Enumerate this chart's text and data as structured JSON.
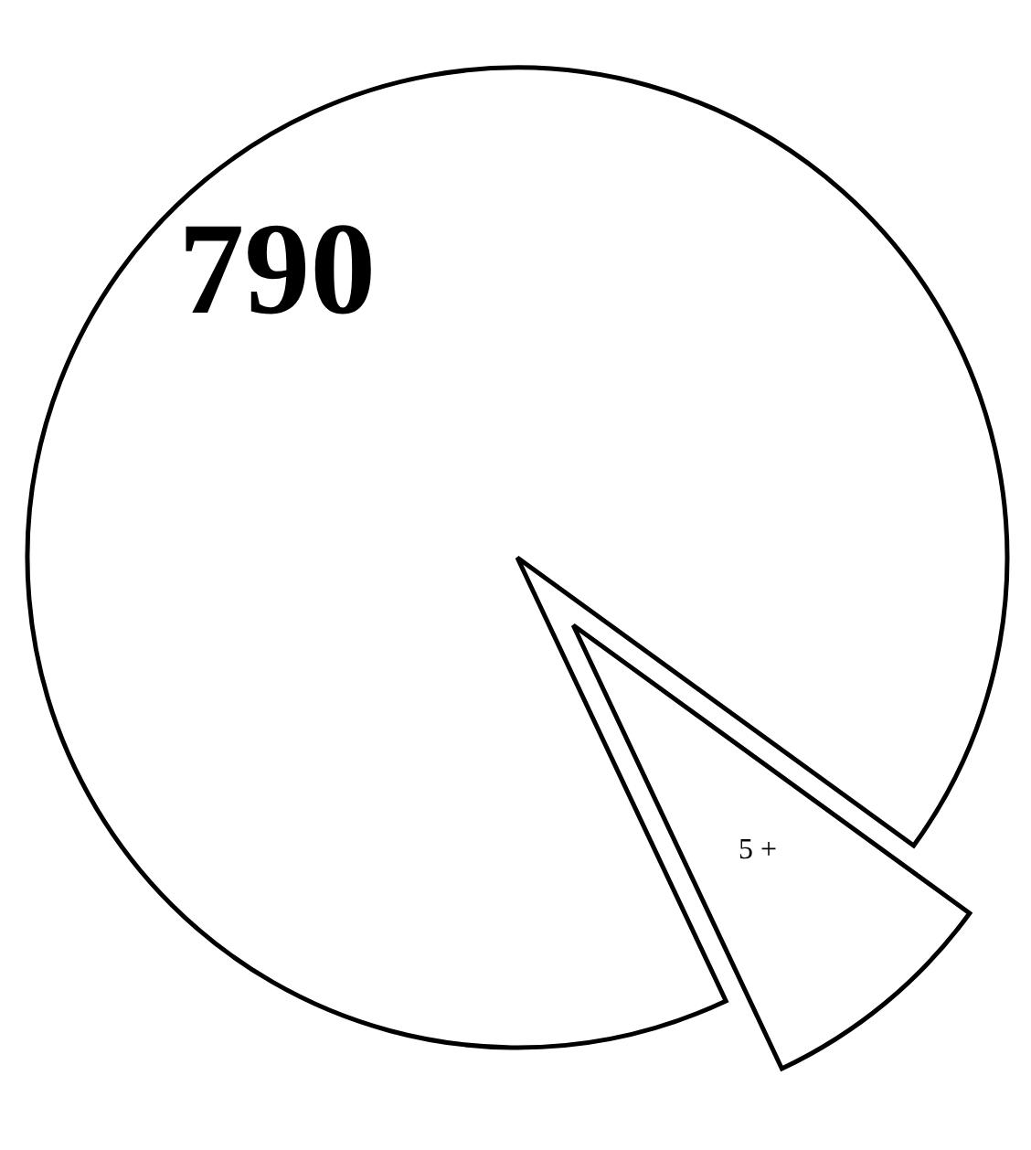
{
  "chart_data": {
    "type": "pie",
    "categories": [
      "790",
      "5 +"
    ],
    "values": [
      92,
      8
    ],
    "colors": [
      "#ffffff",
      "#ffffff"
    ]
  }
}
